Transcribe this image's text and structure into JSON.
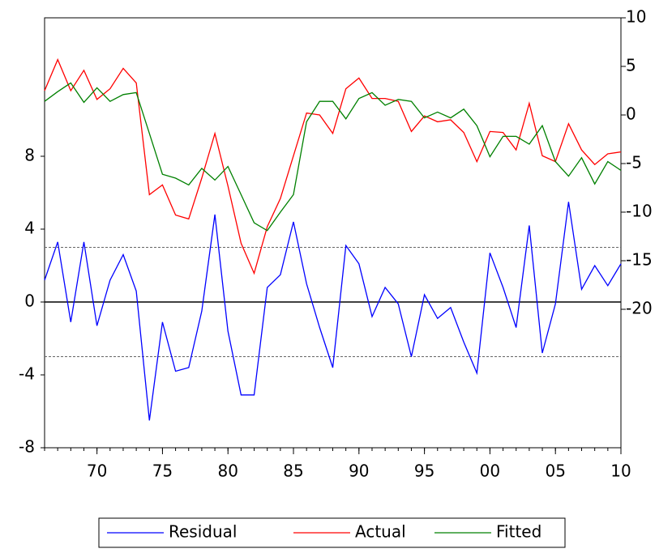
{
  "chart_data": {
    "type": "line",
    "x": [
      1966,
      1967,
      1968,
      1969,
      1970,
      1971,
      1972,
      1973,
      1974,
      1975,
      1976,
      1977,
      1978,
      1979,
      1980,
      1981,
      1982,
      1983,
      1984,
      1985,
      1986,
      1987,
      1988,
      1989,
      1990,
      1991,
      1992,
      1993,
      1994,
      1995,
      1996,
      1997,
      1998,
      1999,
      2000,
      2001,
      2002,
      2003,
      2004,
      2005,
      2006,
      2007,
      2008,
      2009,
      2010
    ],
    "xlim": [
      1966,
      2010
    ],
    "xticks": [
      {
        "value": 1970,
        "label": "70"
      },
      {
        "value": 1975,
        "label": "75"
      },
      {
        "value": 1980,
        "label": "80"
      },
      {
        "value": 1985,
        "label": "85"
      },
      {
        "value": 1990,
        "label": "90"
      },
      {
        "value": 1995,
        "label": "95"
      },
      {
        "value": 2000,
        "label": "00"
      },
      {
        "value": 2005,
        "label": "05"
      },
      {
        "value": 2010,
        "label": "10"
      }
    ],
    "ylim": [
      -8,
      15.6
    ],
    "yticks": [
      -8,
      -4,
      0,
      4,
      8
    ],
    "y2lim": [
      -34.25,
      10
    ],
    "y2ticks": [
      -20,
      -15,
      -10,
      -5,
      0,
      5,
      10
    ],
    "hlines": [
      0
    ],
    "dashed_hlines": [
      3,
      -3
    ],
    "series": [
      {
        "name": "Residual",
        "color": "#0000ff",
        "axis": "y",
        "values": [
          1.2,
          3.3,
          -1.1,
          3.3,
          -1.3,
          1.2,
          2.6,
          0.6,
          -6.5,
          -1.1,
          -3.8,
          -3.6,
          -0.5,
          4.8,
          -1.6,
          -5.1,
          -5.1,
          0.8,
          1.5,
          4.4,
          1.0,
          -1.4,
          -3.6,
          3.1,
          2.1,
          -0.8,
          0.8,
          -0.1,
          -3.0,
          0.4,
          -0.9,
          -0.3,
          -2.2,
          -3.9,
          2.7,
          0.8,
          -1.4,
          4.2,
          -2.8,
          -0.1,
          5.5,
          0.7,
          2.0,
          0.9,
          2.1
        ]
      },
      {
        "name": "Actual",
        "color": "#ff0000",
        "axis": "y2",
        "values": [
          2.5,
          5.7,
          2.5,
          4.6,
          1.6,
          2.7,
          4.8,
          3.3,
          -8.2,
          -7.2,
          -10.3,
          -10.7,
          -6.5,
          -1.9,
          -7.3,
          -13.2,
          -16.3,
          -11.5,
          -8.6,
          -4.2,
          0.2,
          0,
          -1.9,
          2.7,
          3.8,
          1.7,
          1.7,
          1.4,
          -1.7,
          -0.1,
          -0.7,
          -0.5,
          -1.8,
          -4.8,
          -1.7,
          -1.8,
          -3.6,
          1.2,
          -4.2,
          -4.8,
          -0.9,
          -3.6,
          -5.1,
          -4.0,
          -3.8
        ]
      },
      {
        "name": "Fitted",
        "color": "#008000",
        "axis": "y2",
        "values": [
          1.4,
          2.4,
          3.3,
          1.3,
          2.8,
          1.4,
          2.1,
          2.3,
          -1.9,
          -6.1,
          -6.5,
          -7.2,
          -5.5,
          -6.7,
          -5.3,
          -8.2,
          -11.1,
          -11.9,
          -10,
          -8.2,
          -0.7,
          1.4,
          1.4,
          -0.4,
          1.7,
          2.3,
          1.0,
          1.6,
          1.4,
          -0.3,
          0.3,
          -0.3,
          0.6,
          -1.1,
          -4.3,
          -2.2,
          -2.2,
          -3.0,
          -1.1,
          -4.8,
          -6.3,
          -4.4,
          -7.1,
          -4.8,
          -5.7
        ]
      }
    ]
  }
}
